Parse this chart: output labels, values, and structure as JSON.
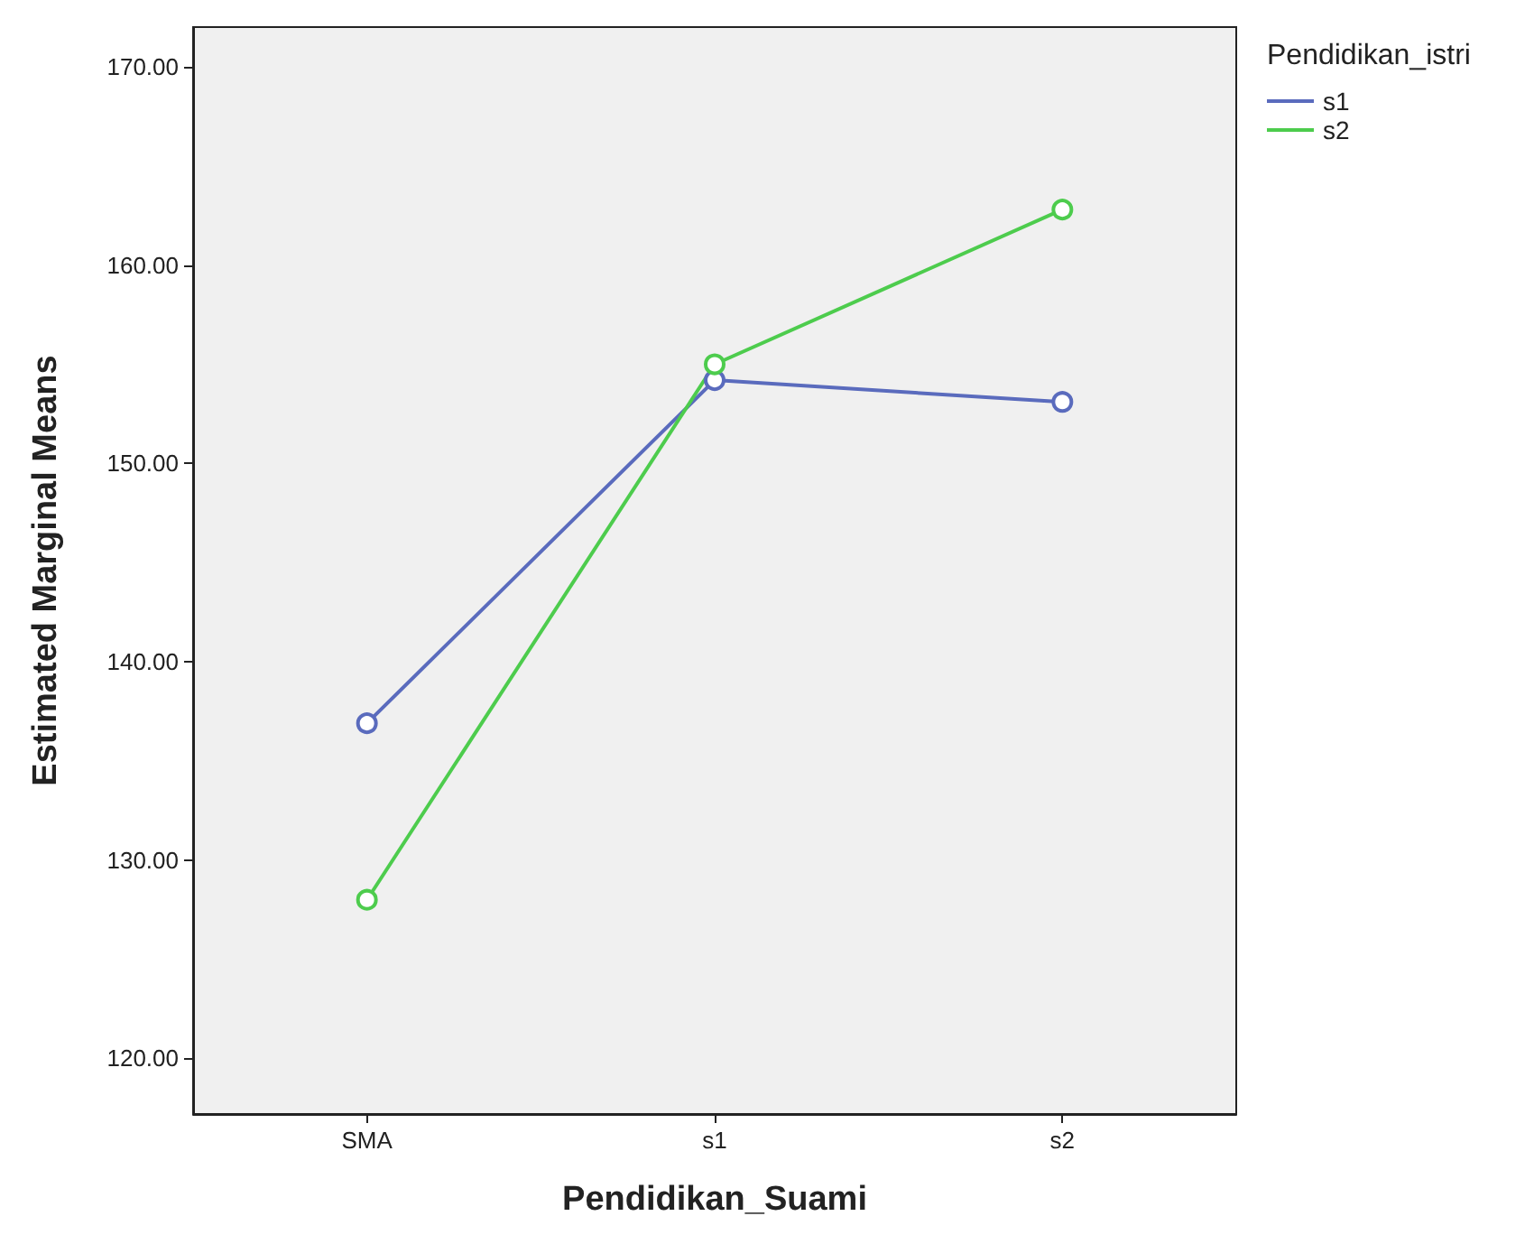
{
  "chart_data": {
    "type": "line",
    "xlabel": "Pendidikan_Suami",
    "ylabel": "Estimated Marginal Means",
    "legend_title": "Pendidikan_istri",
    "categories": [
      "SMA",
      "s1",
      "s2"
    ],
    "series": [
      {
        "name": "s1",
        "color": "#5a6bbd",
        "values": [
          136.9,
          154.2,
          153.1
        ]
      },
      {
        "name": "s2",
        "color": "#4dcc4d",
        "values": [
          128.0,
          155.0,
          162.8
        ]
      }
    ],
    "ylim": [
      117.2,
      172
    ],
    "yticks": [
      {
        "value": 120,
        "label": "120.00"
      },
      {
        "value": 130,
        "label": "130.00"
      },
      {
        "value": 140,
        "label": "140.00"
      },
      {
        "value": 150,
        "label": "150.00"
      },
      {
        "value": 160,
        "label": "160.00"
      },
      {
        "value": 170,
        "label": "170.00"
      }
    ],
    "grid": false,
    "legend": "top right",
    "marker": "circle",
    "line_style": "solid"
  }
}
